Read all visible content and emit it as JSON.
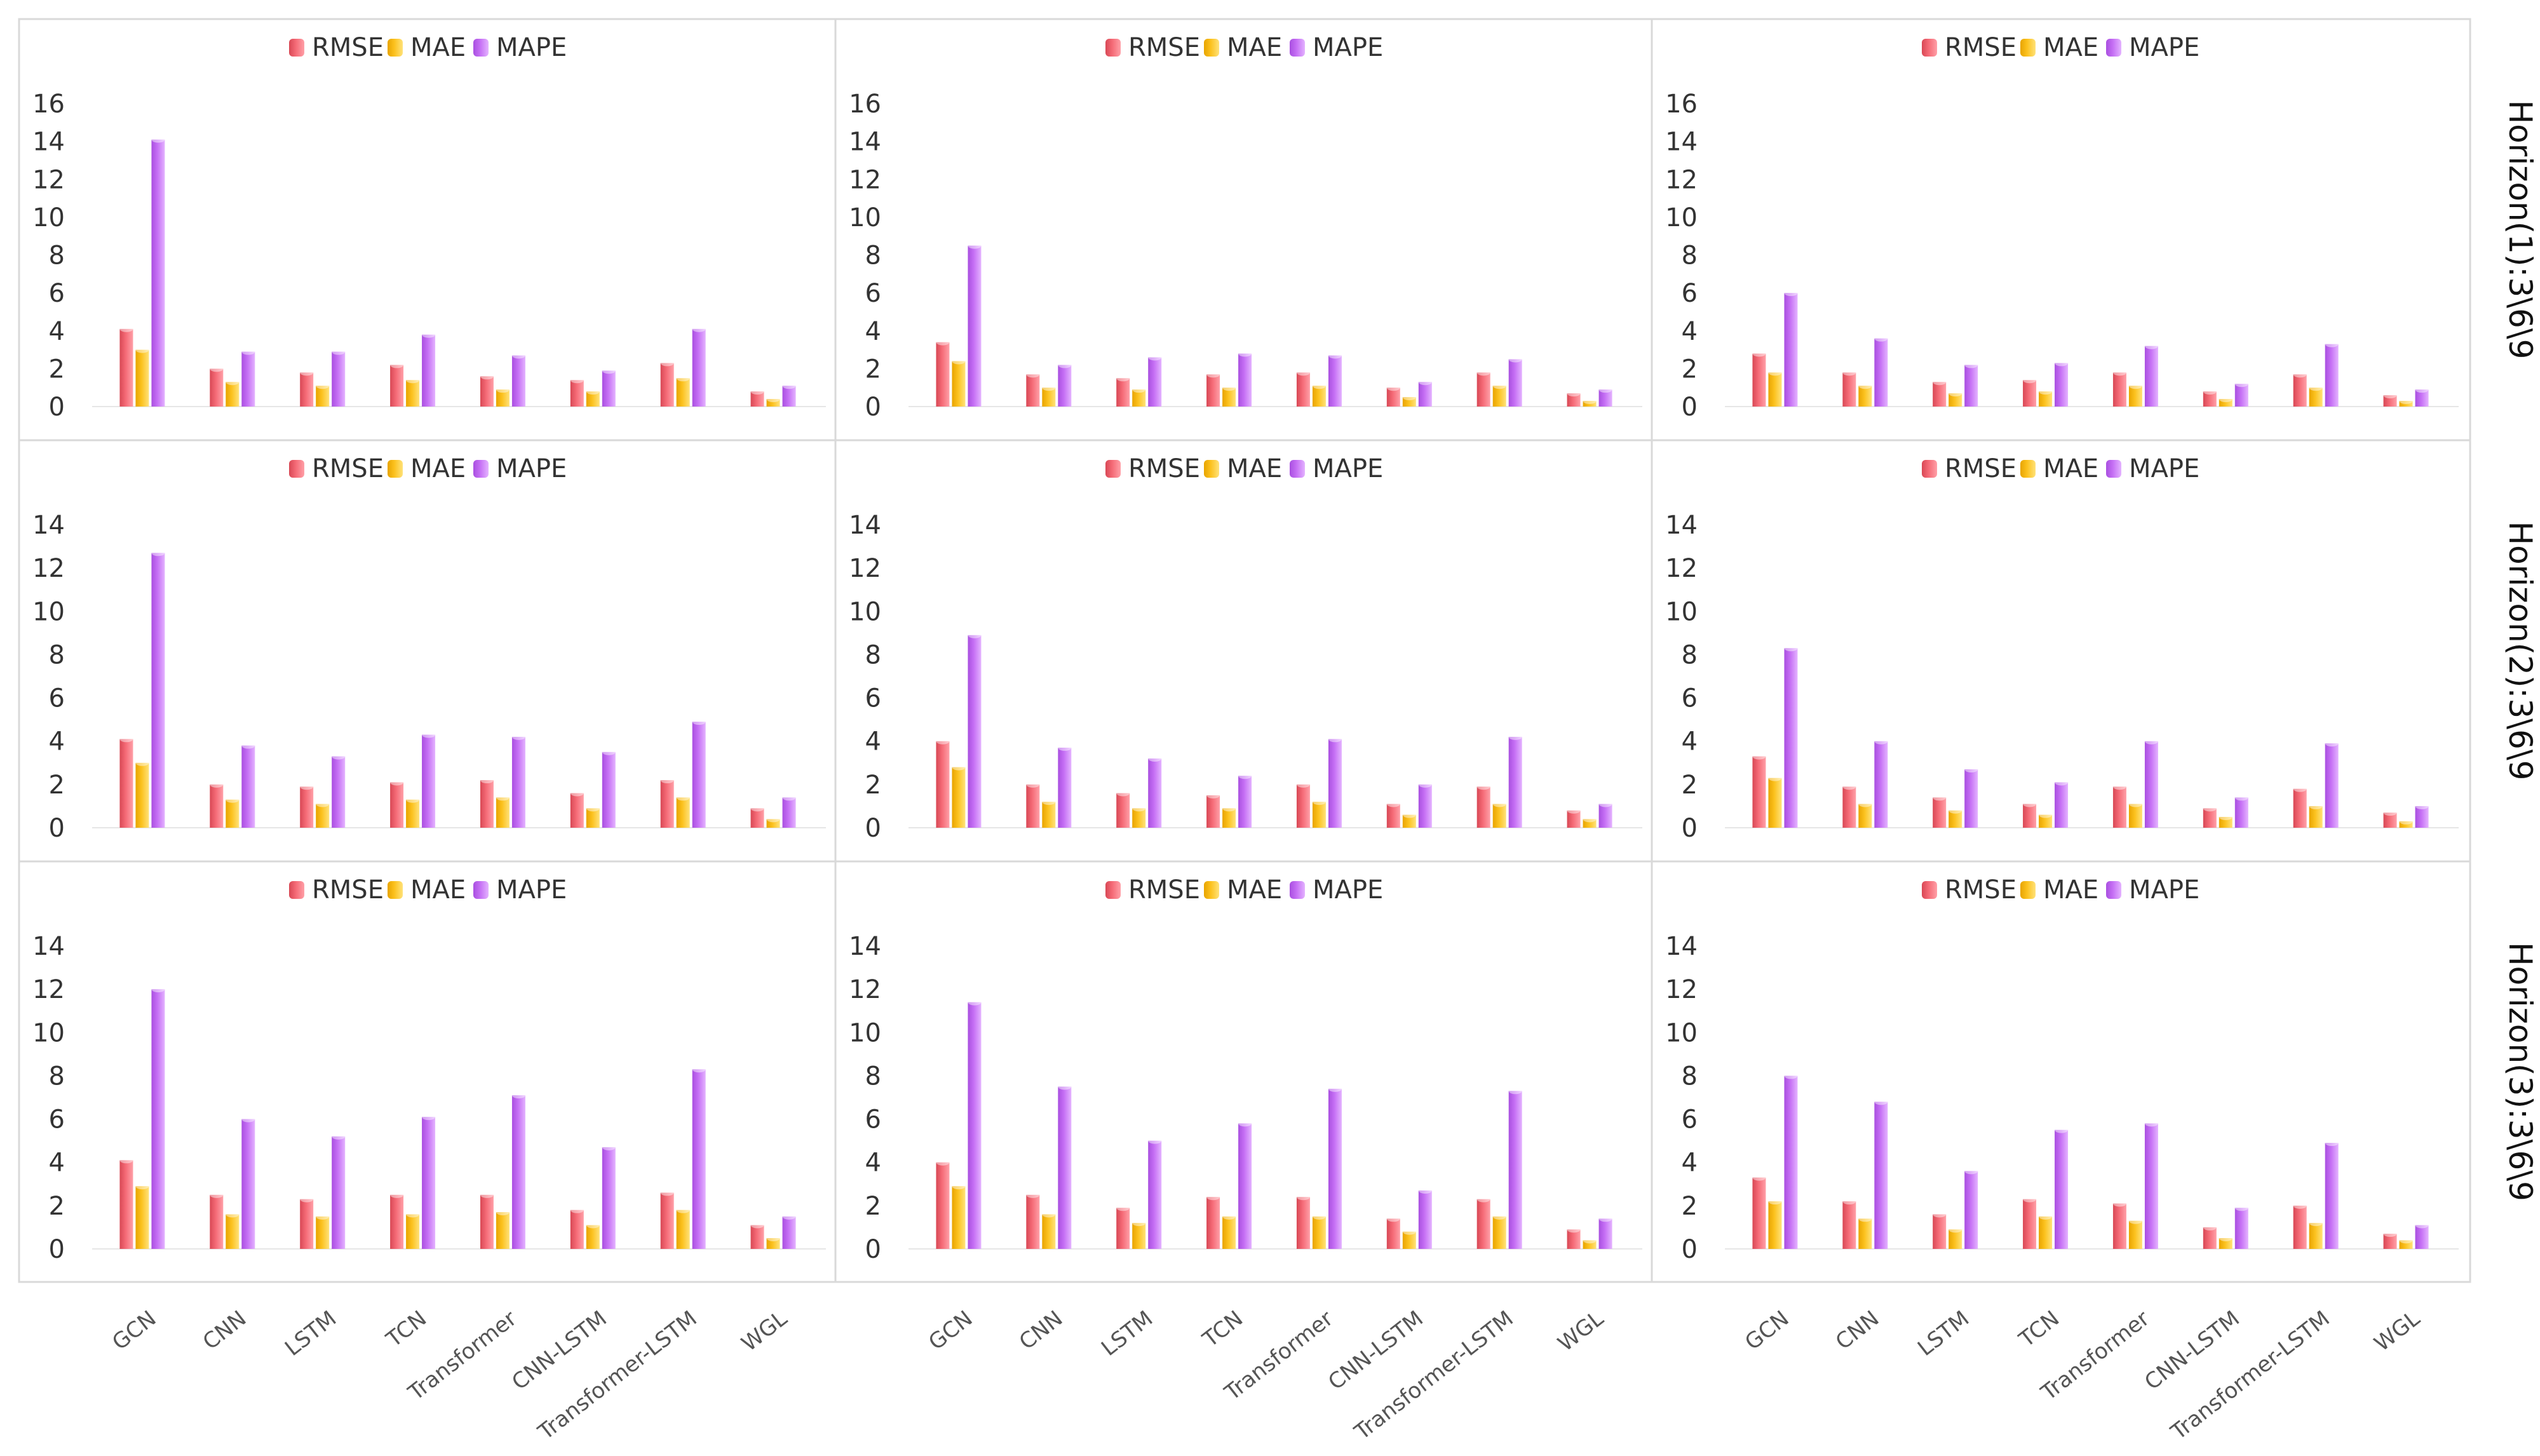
{
  "chart_data": {
    "type": "bar",
    "layout": "3x3 grid of grouped bar charts",
    "categories": [
      "GCN",
      "CNN",
      "LSTM",
      "TCN",
      "Transformer",
      "CNN-LSTM",
      "Transformer-LSTM",
      "WGL"
    ],
    "series_names": [
      "RMSE",
      "MAE",
      "MAPE"
    ],
    "colors": {
      "RMSE": "#f0606c",
      "MAE": "#f7bd1a",
      "MAPE": "#c266f2"
    },
    "row_labels": [
      "Horizon(1):3\\6\\9",
      "Horizon(2):3\\6\\9",
      "Horizon(3):3\\6\\9"
    ],
    "legend_position": "top-center",
    "rows": [
      {
        "ylim": [
          0,
          16
        ],
        "yticks": [
          "0",
          "2",
          "4",
          "6",
          "8",
          "10",
          "12",
          "14",
          "16"
        ],
        "panels": [
          {
            "RMSE": [
              4.1,
              2.0,
              1.8,
              2.2,
              1.6,
              1.4,
              2.3,
              0.8
            ],
            "MAE": [
              3.0,
              1.3,
              1.1,
              1.4,
              0.9,
              0.8,
              1.5,
              0.4
            ],
            "MAPE": [
              14.1,
              2.9,
              2.9,
              3.8,
              2.7,
              1.9,
              4.1,
              1.1
            ]
          },
          {
            "RMSE": [
              3.4,
              1.7,
              1.5,
              1.7,
              1.8,
              1.0,
              1.8,
              0.7
            ],
            "MAE": [
              2.4,
              1.0,
              0.9,
              1.0,
              1.1,
              0.5,
              1.1,
              0.3
            ],
            "MAPE": [
              8.5,
              2.2,
              2.6,
              2.8,
              2.7,
              1.3,
              2.5,
              0.9
            ]
          },
          {
            "RMSE": [
              2.8,
              1.8,
              1.3,
              1.4,
              1.8,
              0.8,
              1.7,
              0.6
            ],
            "MAE": [
              1.8,
              1.1,
              0.7,
              0.8,
              1.1,
              0.4,
              1.0,
              0.3
            ],
            "MAPE": [
              6.0,
              3.6,
              2.2,
              2.3,
              3.2,
              1.2,
              3.3,
              0.9
            ]
          }
        ]
      },
      {
        "ylim": [
          0,
          14
        ],
        "yticks": [
          "0",
          "2",
          "4",
          "6",
          "8",
          "10",
          "12",
          "14"
        ],
        "panels": [
          {
            "RMSE": [
              4.1,
              2.0,
              1.9,
              2.1,
              2.2,
              1.6,
              2.2,
              0.9
            ],
            "MAE": [
              3.0,
              1.3,
              1.1,
              1.3,
              1.4,
              0.9,
              1.4,
              0.4
            ],
            "MAPE": [
              12.7,
              3.8,
              3.3,
              4.3,
              4.2,
              3.5,
              4.9,
              1.4
            ]
          },
          {
            "RMSE": [
              4.0,
              2.0,
              1.6,
              1.5,
              2.0,
              1.1,
              1.9,
              0.8
            ],
            "MAE": [
              2.8,
              1.2,
              0.9,
              0.9,
              1.2,
              0.6,
              1.1,
              0.4
            ],
            "MAPE": [
              8.9,
              3.7,
              3.2,
              2.4,
              4.1,
              2.0,
              4.2,
              1.1
            ]
          },
          {
            "RMSE": [
              3.3,
              1.9,
              1.4,
              1.1,
              1.9,
              0.9,
              1.8,
              0.7
            ],
            "MAE": [
              2.3,
              1.1,
              0.8,
              0.6,
              1.1,
              0.5,
              1.0,
              0.3
            ],
            "MAPE": [
              8.3,
              4.0,
              2.7,
              2.1,
              4.0,
              1.4,
              3.9,
              1.0
            ]
          }
        ]
      },
      {
        "ylim": [
          0,
          14
        ],
        "yticks": [
          "0",
          "2",
          "4",
          "6",
          "8",
          "10",
          "12",
          "14"
        ],
        "panels": [
          {
            "RMSE": [
              4.1,
              2.5,
              2.3,
              2.5,
              2.5,
              1.8,
              2.6,
              1.1
            ],
            "MAE": [
              2.9,
              1.6,
              1.5,
              1.6,
              1.7,
              1.1,
              1.8,
              0.5
            ],
            "MAPE": [
              12.0,
              6.0,
              5.2,
              6.1,
              7.1,
              4.7,
              8.3,
              1.5
            ]
          },
          {
            "RMSE": [
              4.0,
              2.5,
              1.9,
              2.4,
              2.4,
              1.4,
              2.3,
              0.9
            ],
            "MAE": [
              2.9,
              1.6,
              1.2,
              1.5,
              1.5,
              0.8,
              1.5,
              0.4
            ],
            "MAPE": [
              11.4,
              7.5,
              5.0,
              5.8,
              7.4,
              2.7,
              7.3,
              1.4
            ]
          },
          {
            "RMSE": [
              3.3,
              2.2,
              1.6,
              2.3,
              2.1,
              1.0,
              2.0,
              0.7
            ],
            "MAE": [
              2.2,
              1.4,
              0.9,
              1.5,
              1.3,
              0.5,
              1.2,
              0.4
            ],
            "MAPE": [
              8.0,
              6.8,
              3.6,
              5.5,
              5.8,
              1.9,
              4.9,
              1.1
            ]
          }
        ]
      }
    ]
  }
}
